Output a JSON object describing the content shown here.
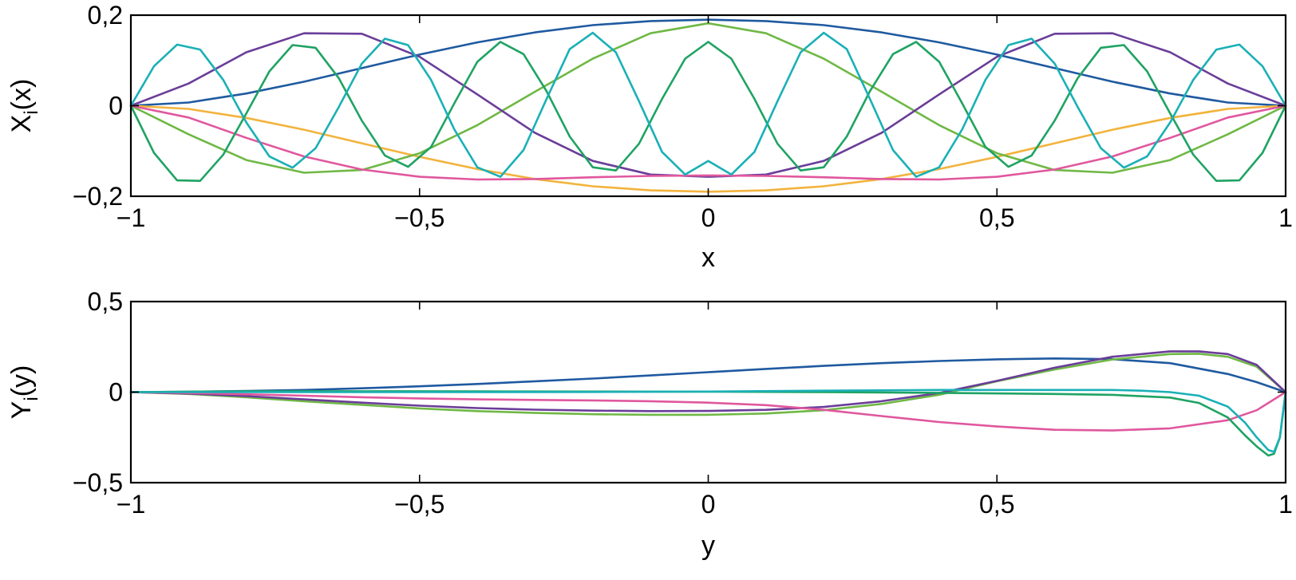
{
  "chart_data": [
    {
      "type": "line",
      "xlabel": "x",
      "ylabel_main": "X",
      "ylabel_sub": "i",
      "ylabel_tail": "(x)",
      "xlim": [
        -1,
        1
      ],
      "ylim": [
        -0.2,
        0.2
      ],
      "xticks": [
        -1,
        -0.5,
        0,
        0.5,
        1
      ],
      "xtick_labels": [
        "−1",
        "−0,5",
        "0",
        "0,5",
        "1"
      ],
      "yticks": [
        -0.2,
        0,
        0.2
      ],
      "ytick_labels": [
        "−0,2",
        "0",
        "0,2"
      ],
      "grid": false,
      "series": [
        {
          "color": "#1f5aa0",
          "x": [
            -1,
            -0.9,
            -0.8,
            -0.7,
            -0.6,
            -0.5,
            -0.4,
            -0.3,
            -0.2,
            -0.1,
            0,
            0.1,
            0.2,
            0.3,
            0.4,
            0.5,
            0.6,
            0.7,
            0.8,
            0.9,
            1
          ],
          "y": [
            0,
            0.007,
            0.027,
            0.053,
            0.083,
            0.113,
            0.14,
            0.162,
            0.178,
            0.187,
            0.19,
            0.187,
            0.178,
            0.162,
            0.14,
            0.113,
            0.083,
            0.053,
            0.027,
            0.007,
            0
          ]
        },
        {
          "color": "#f2b33d",
          "x": [
            -1,
            -0.9,
            -0.8,
            -0.7,
            -0.6,
            -0.5,
            -0.4,
            -0.3,
            -0.2,
            -0.1,
            0,
            0.1,
            0.2,
            0.3,
            0.4,
            0.5,
            0.6,
            0.7,
            0.8,
            0.9,
            1
          ],
          "y": [
            0,
            -0.007,
            -0.027,
            -0.053,
            -0.083,
            -0.113,
            -0.14,
            -0.162,
            -0.178,
            -0.187,
            -0.19,
            -0.187,
            -0.178,
            -0.162,
            -0.14,
            -0.113,
            -0.083,
            -0.053,
            -0.027,
            -0.007,
            0
          ]
        },
        {
          "color": "#6fb845",
          "x": [
            -1,
            -0.9,
            -0.8,
            -0.7,
            -0.6,
            -0.5,
            -0.4,
            -0.3,
            -0.2,
            -0.1,
            0,
            0.1,
            0.2,
            0.3,
            0.4,
            0.5,
            0.6,
            0.7,
            0.8,
            0.9,
            1
          ],
          "y": [
            0,
            -0.063,
            -0.12,
            -0.148,
            -0.142,
            -0.105,
            -0.043,
            0.031,
            0.104,
            0.16,
            0.182,
            0.16,
            0.104,
            0.031,
            -0.043,
            -0.105,
            -0.142,
            -0.148,
            -0.12,
            -0.063,
            0
          ]
        },
        {
          "color": "#6a3d99",
          "x": [
            -1,
            -0.9,
            -0.8,
            -0.7,
            -0.6,
            -0.5,
            -0.4,
            -0.3,
            -0.2,
            -0.1,
            0,
            0.1,
            0.2,
            0.3,
            0.4,
            0.5,
            0.6,
            0.7,
            0.8,
            0.9,
            1
          ],
          "y": [
            0,
            0.049,
            0.118,
            0.16,
            0.159,
            0.108,
            0.025,
            -0.06,
            -0.122,
            -0.152,
            -0.157,
            -0.152,
            -0.122,
            -0.06,
            0.025,
            0.108,
            0.159,
            0.16,
            0.118,
            0.049,
            0
          ]
        },
        {
          "color": "#e0579e",
          "x": [
            -1,
            -0.9,
            -0.8,
            -0.7,
            -0.6,
            -0.5,
            -0.4,
            -0.3,
            -0.2,
            -0.1,
            0,
            0.1,
            0.2,
            0.3,
            0.4,
            0.5,
            0.6,
            0.7,
            0.8,
            0.9,
            1
          ],
          "y": [
            0,
            -0.026,
            -0.071,
            -0.112,
            -0.141,
            -0.157,
            -0.163,
            -0.162,
            -0.158,
            -0.155,
            -0.154,
            -0.155,
            -0.158,
            -0.162,
            -0.163,
            -0.157,
            -0.141,
            -0.112,
            -0.071,
            -0.026,
            0
          ]
        },
        {
          "color": "#1fa363",
          "x": [
            -1,
            -0.96,
            -0.92,
            -0.88,
            -0.84,
            -0.8,
            -0.76,
            -0.72,
            -0.68,
            -0.64,
            -0.6,
            -0.56,
            -0.52,
            -0.48,
            -0.44,
            -0.4,
            -0.36,
            -0.32,
            -0.28,
            -0.24,
            -0.2,
            -0.16,
            -0.12,
            -0.08,
            -0.04,
            0,
            0.04,
            0.08,
            0.12,
            0.16,
            0.2,
            0.24,
            0.28,
            0.32,
            0.36,
            0.4,
            0.44,
            0.48,
            0.52,
            0.56,
            0.6,
            0.64,
            0.68,
            0.72,
            0.76,
            0.8,
            0.84,
            0.88,
            0.92,
            0.96,
            1
          ],
          "y": [
            0,
            -0.104,
            -0.165,
            -0.166,
            -0.108,
            -0.017,
            0.076,
            0.134,
            0.128,
            0.061,
            -0.033,
            -0.11,
            -0.135,
            -0.091,
            0.005,
            0.097,
            0.141,
            0.114,
            0.032,
            -0.068,
            -0.136,
            -0.143,
            -0.084,
            0.015,
            0.104,
            0.141,
            0.104,
            0.015,
            -0.084,
            -0.143,
            -0.136,
            -0.068,
            0.032,
            0.114,
            0.141,
            0.097,
            0.005,
            -0.091,
            -0.135,
            -0.11,
            -0.033,
            0.061,
            0.128,
            0.134,
            0.076,
            -0.017,
            -0.108,
            -0.166,
            -0.165,
            -0.104,
            0
          ]
        },
        {
          "color": "#1ab0b6",
          "x": [
            -1,
            -0.96,
            -0.92,
            -0.88,
            -0.84,
            -0.8,
            -0.76,
            -0.72,
            -0.68,
            -0.64,
            -0.6,
            -0.56,
            -0.52,
            -0.48,
            -0.44,
            -0.4,
            -0.36,
            -0.32,
            -0.28,
            -0.24,
            -0.2,
            -0.16,
            -0.12,
            -0.08,
            -0.04,
            0,
            0.04,
            0.08,
            0.12,
            0.16,
            0.2,
            0.24,
            0.28,
            0.32,
            0.36,
            0.4,
            0.44,
            0.48,
            0.52,
            0.56,
            0.6,
            0.64,
            0.68,
            0.72,
            0.76,
            0.8,
            0.84,
            0.88,
            0.92,
            0.96,
            1
          ],
          "y": [
            0,
            0.087,
            0.135,
            0.124,
            0.057,
            -0.037,
            -0.112,
            -0.137,
            -0.094,
            -0.003,
            0.093,
            0.148,
            0.134,
            0.057,
            -0.052,
            -0.136,
            -0.157,
            -0.098,
            0.015,
            0.125,
            0.161,
            0.118,
            0.01,
            -0.102,
            -0.152,
            -0.122,
            -0.152,
            -0.102,
            0.01,
            0.118,
            0.161,
            0.125,
            0.015,
            -0.098,
            -0.157,
            -0.136,
            -0.052,
            0.057,
            0.134,
            0.148,
            0.093,
            -0.003,
            -0.094,
            -0.137,
            -0.112,
            -0.037,
            0.057,
            0.124,
            0.135,
            0.087,
            0
          ]
        }
      ]
    },
    {
      "type": "line",
      "xlabel": "y",
      "ylabel_main": "Y",
      "ylabel_sub": "i",
      "ylabel_tail": "(y)",
      "xlim": [
        -1,
        1
      ],
      "ylim": [
        -0.5,
        0.5
      ],
      "xticks": [
        -1,
        -0.5,
        0,
        0.5,
        1
      ],
      "xtick_labels": [
        "−1",
        "−0,5",
        "0",
        "0,5",
        "1"
      ],
      "yticks": [
        -0.5,
        0,
        0.5
      ],
      "ytick_labels": [
        "−0,5",
        "0",
        "0,5"
      ],
      "grid": false,
      "series": [
        {
          "color": "#1f5aa0",
          "x": [
            -1,
            -0.9,
            -0.8,
            -0.7,
            -0.6,
            -0.5,
            -0.4,
            -0.3,
            -0.2,
            -0.1,
            0,
            0.1,
            0.2,
            0.3,
            0.4,
            0.5,
            0.6,
            0.7,
            0.8,
            0.9,
            0.95,
            1
          ],
          "y": [
            0,
            0.002,
            0.006,
            0.012,
            0.021,
            0.032,
            0.045,
            0.06,
            0.075,
            0.092,
            0.11,
            0.128,
            0.145,
            0.16,
            0.172,
            0.181,
            0.186,
            0.182,
            0.16,
            0.1,
            0.055,
            0
          ]
        },
        {
          "color": "#6fb845",
          "x": [
            -1,
            -0.9,
            -0.8,
            -0.7,
            -0.6,
            -0.5,
            -0.4,
            -0.3,
            -0.2,
            -0.1,
            0,
            0.1,
            0.2,
            0.3,
            0.4,
            0.5,
            0.6,
            0.7,
            0.8,
            0.85,
            0.9,
            0.95,
            1
          ],
          "y": [
            0,
            -0.01,
            -0.028,
            -0.05,
            -0.07,
            -0.09,
            -0.105,
            -0.115,
            -0.122,
            -0.125,
            -0.125,
            -0.118,
            -0.1,
            -0.065,
            -0.015,
            0.06,
            0.125,
            0.18,
            0.21,
            0.212,
            0.195,
            0.14,
            0
          ]
        },
        {
          "color": "#6a3d99",
          "x": [
            -1,
            -0.9,
            -0.8,
            -0.7,
            -0.6,
            -0.5,
            -0.4,
            -0.3,
            -0.2,
            -0.1,
            0,
            0.1,
            0.2,
            0.3,
            0.4,
            0.5,
            0.6,
            0.7,
            0.8,
            0.85,
            0.9,
            0.95,
            1
          ],
          "y": [
            0,
            -0.008,
            -0.022,
            -0.04,
            -0.058,
            -0.075,
            -0.088,
            -0.097,
            -0.102,
            -0.105,
            -0.104,
            -0.098,
            -0.082,
            -0.05,
            -0.005,
            0.062,
            0.135,
            0.195,
            0.225,
            0.225,
            0.21,
            0.15,
            0
          ]
        },
        {
          "color": "#e0579e",
          "x": [
            -1,
            -0.9,
            -0.8,
            -0.7,
            -0.6,
            -0.5,
            -0.4,
            -0.3,
            -0.2,
            -0.1,
            0,
            0.1,
            0.2,
            0.3,
            0.4,
            0.5,
            0.6,
            0.7,
            0.8,
            0.9,
            0.95,
            1
          ],
          "y": [
            0,
            -0.005,
            -0.012,
            -0.02,
            -0.028,
            -0.035,
            -0.04,
            -0.043,
            -0.046,
            -0.05,
            -0.058,
            -0.072,
            -0.098,
            -0.132,
            -0.165,
            -0.19,
            -0.208,
            -0.212,
            -0.2,
            -0.155,
            -0.1,
            0
          ]
        },
        {
          "color": "#1fa363",
          "x": [
            -1,
            -0.8,
            -0.6,
            -0.4,
            -0.2,
            0,
            0.2,
            0.4,
            0.6,
            0.7,
            0.8,
            0.85,
            0.9,
            0.93,
            0.95,
            0.97,
            0.98,
            0.99,
            1
          ],
          "y": [
            0,
            0.005,
            0.005,
            0.004,
            0.003,
            0.002,
            0.0,
            -0.004,
            -0.01,
            -0.015,
            -0.03,
            -0.06,
            -0.14,
            -0.24,
            -0.3,
            -0.35,
            -0.34,
            -0.25,
            0
          ]
        },
        {
          "color": "#1ab0b6",
          "x": [
            -1,
            -0.8,
            -0.6,
            -0.4,
            -0.2,
            0,
            0.2,
            0.4,
            0.6,
            0.7,
            0.75,
            0.8,
            0.85,
            0.9,
            0.93,
            0.95,
            0.97,
            0.98,
            0.99,
            1
          ],
          "y": [
            0,
            0.0,
            0.0,
            0.0,
            0.001,
            0.003,
            0.008,
            0.012,
            0.012,
            0.012,
            0.008,
            0.0,
            -0.02,
            -0.08,
            -0.17,
            -0.25,
            -0.32,
            -0.33,
            -0.25,
            0
          ]
        }
      ]
    }
  ]
}
